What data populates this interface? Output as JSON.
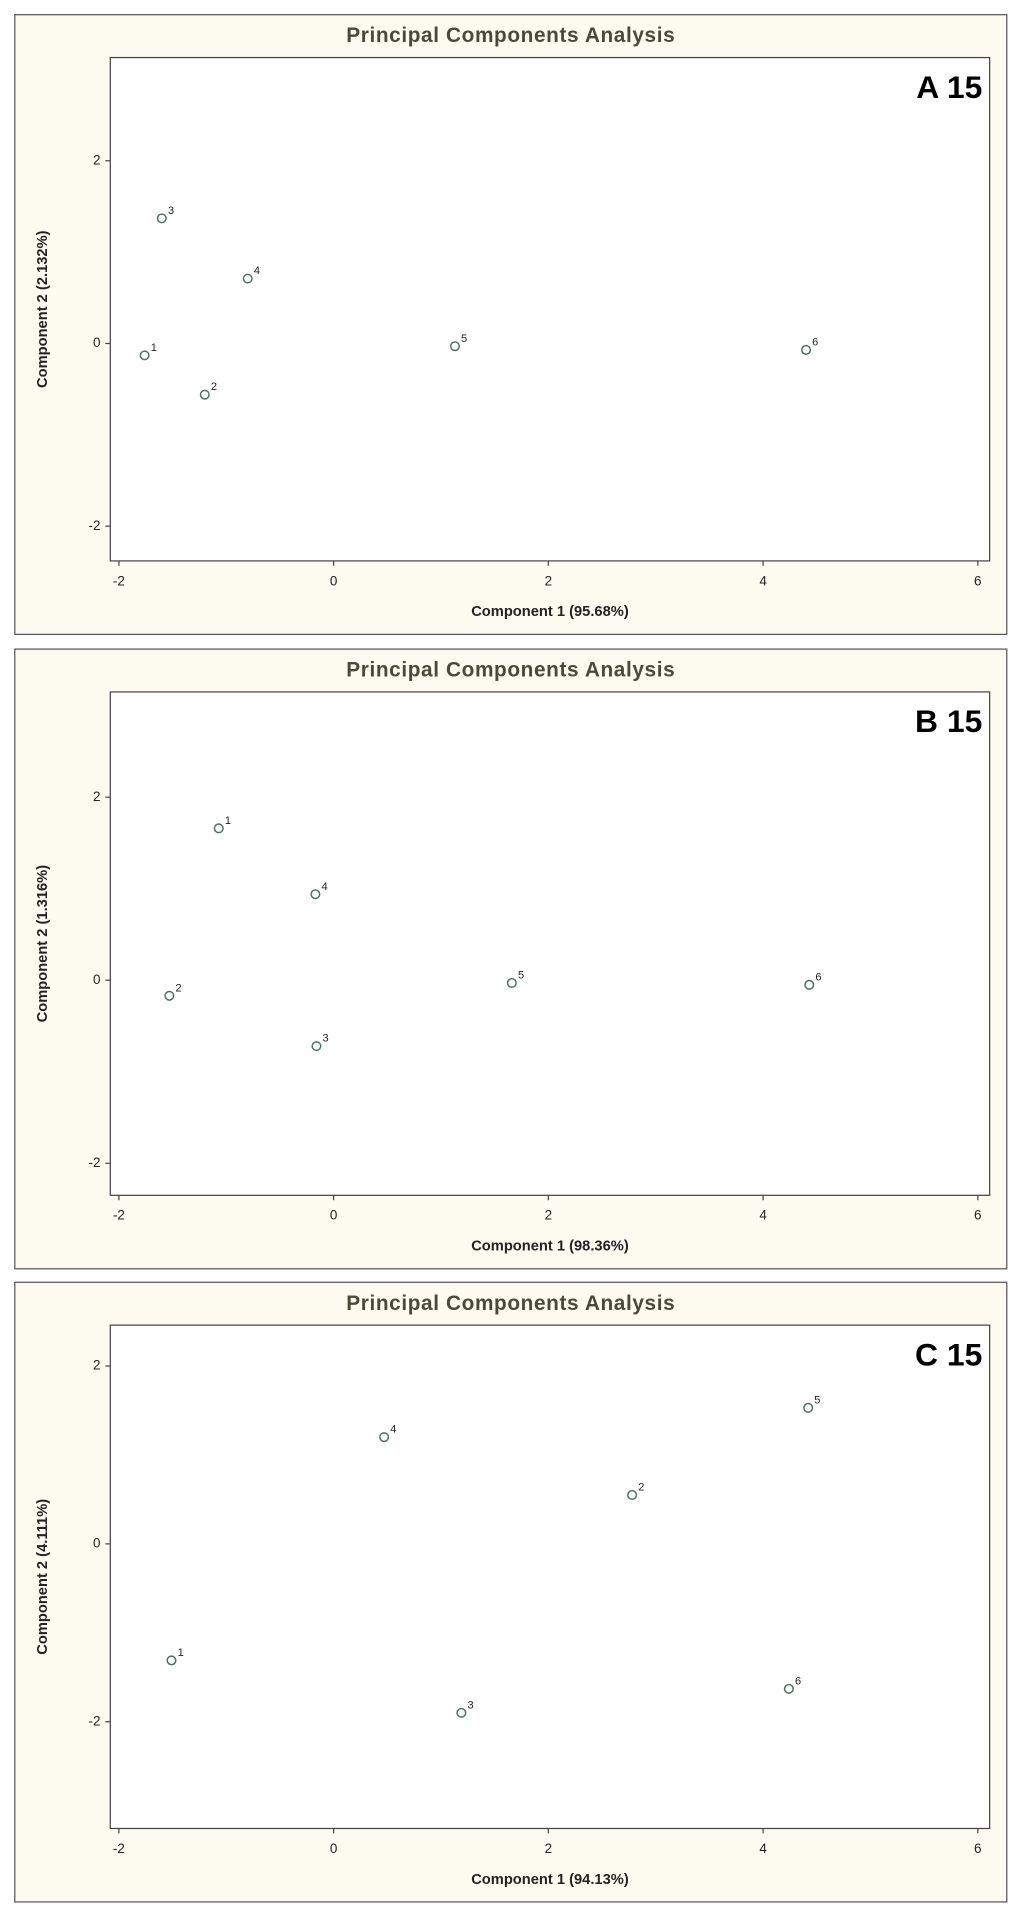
{
  "chart_data": [
    {
      "type": "scatter",
      "title": "Principal Components Analysis",
      "annotation": "A 15",
      "x_label": "Component 1 (95.68%)",
      "y_label": "Component 2 (2.132%)",
      "labels": [
        "1",
        "2",
        "3",
        "4",
        "5",
        "6"
      ],
      "x": [
        -1.76,
        -1.2,
        -1.6,
        -0.8,
        1.13,
        4.4
      ],
      "y": [
        -0.13,
        -0.56,
        1.37,
        0.71,
        -0.03,
        -0.07
      ],
      "color": "#4f6f5f",
      "xlim": [
        -2.08,
        6.11
      ],
      "ylim": [
        -2.38,
        3.13
      ],
      "xticks": [
        -2,
        0,
        2,
        4,
        6
      ],
      "yticks": [
        -2,
        0,
        2
      ]
    },
    {
      "type": "scatter",
      "title": "Principal Components Analysis",
      "annotation": "B 15",
      "x_label": "Component 1 (98.36%)",
      "y_label": "Component 2 (1.316%)",
      "labels": [
        "1",
        "2",
        "3",
        "4",
        "5",
        "6"
      ],
      "x": [
        -1.07,
        -1.53,
        -0.16,
        -0.17,
        1.66,
        4.43
      ],
      "y": [
        1.66,
        -0.17,
        -0.72,
        0.94,
        -0.03,
        -0.05
      ],
      "color": "#4f6f5f",
      "xlim": [
        -2.08,
        6.11
      ],
      "ylim": [
        -2.35,
        3.15
      ],
      "xticks": [
        -2,
        0,
        2,
        4,
        6
      ],
      "yticks": [
        -2,
        0,
        2
      ]
    },
    {
      "type": "scatter",
      "title": "Principal Components Analysis",
      "annotation": "C 15",
      "x_label": "Component 1 (94.13%)",
      "y_label": "Component 2 (4.111%)",
      "labels": [
        "1",
        "2",
        "3",
        "4",
        "5",
        "6"
      ],
      "x": [
        -1.51,
        2.78,
        1.19,
        0.47,
        4.42,
        4.24
      ],
      "y": [
        -1.31,
        0.55,
        -1.9,
        1.2,
        1.53,
        -1.63
      ],
      "color": "#4f6f5f",
      "xlim": [
        -2.08,
        6.11
      ],
      "ylim": [
        -3.2,
        2.46
      ],
      "xticks": [
        -2,
        0,
        2,
        4,
        6
      ],
      "yticks": [
        -2,
        0,
        2
      ]
    }
  ]
}
